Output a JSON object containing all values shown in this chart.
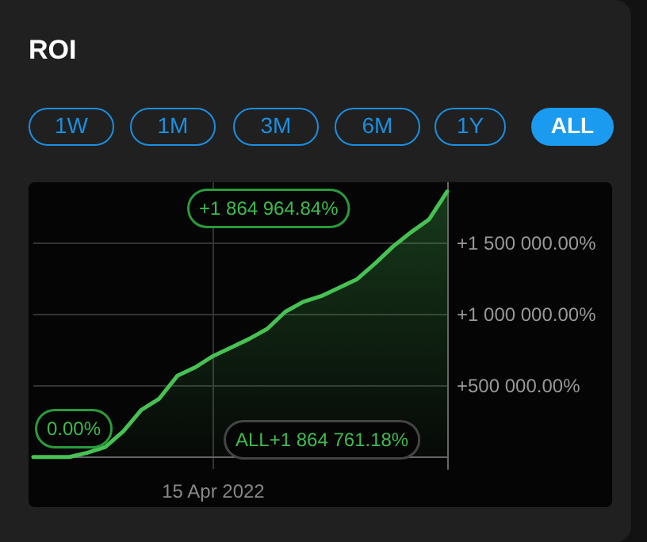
{
  "chart_data": {
    "type": "area",
    "title": "ROI",
    "categories": [
      null,
      null,
      null,
      null,
      null,
      null,
      null,
      null,
      null,
      null,
      "15 Apr 2022",
      null,
      null,
      null,
      null,
      null,
      null,
      null,
      null,
      null,
      null,
      null,
      null,
      null
    ],
    "series": [
      {
        "color": "#47c153",
        "values": [
          0,
          0,
          0,
          30000,
          70000,
          180000,
          330000,
          410000,
          570000,
          630000,
          710000,
          770000,
          830000,
          900000,
          1020000,
          1090000,
          1130000,
          1190000,
          1250000,
          1360000,
          1480000,
          1580000,
          1670000,
          1864965
        ]
      }
    ],
    "ylim": [
      -85000,
      1930000
    ],
    "yticks": [
      {
        "value": 500000,
        "label": "+500 000.00%"
      },
      {
        "value": 1000000,
        "label": "+1 000 000.00%"
      },
      {
        "value": 1500000,
        "label": "+1 500 000.00%"
      }
    ],
    "grid": true,
    "marker": "none",
    "line_style": "solid",
    "annotations": [
      "1W",
      "1M",
      "3M",
      "6M",
      "1Y",
      "ALL",
      "+1 864 964.84%",
      "0.00%",
      "ALL+1 864 761.18%"
    ]
  }
}
